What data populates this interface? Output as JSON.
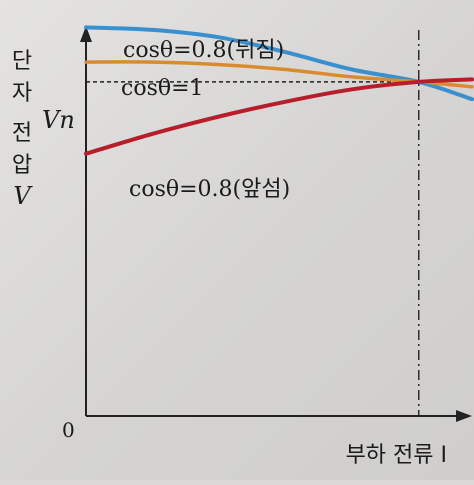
{
  "chart_data": {
    "type": "line",
    "title": "",
    "xlabel": "부하 전류 I",
    "ylabel": "단자 전압 V",
    "origin_label": "0",
    "rated_voltage_label": "Vn",
    "grid": false,
    "series": [
      {
        "name": "cosθ=0.8(뒤짐)",
        "color": "#3a8fcf",
        "relative_voltage": [
          1.22,
          1.21,
          1.18,
          1.12,
          1.05,
          1.0,
          0.93
        ]
      },
      {
        "name": "cosθ=1",
        "color": "#d98c2f",
        "relative_voltage": [
          1.08,
          1.08,
          1.07,
          1.05,
          1.02,
          1.0,
          0.98
        ]
      },
      {
        "name": "cosθ=0.8(앞섬)",
        "color": "#b81d2b",
        "relative_voltage": [
          0.71,
          0.79,
          0.86,
          0.92,
          0.97,
          1.0,
          1.01
        ]
      }
    ],
    "relative_current": [
      0.0,
      0.2,
      0.4,
      0.6,
      0.8,
      1.0,
      1.16
    ],
    "rated_point": {
      "relative_current": 1.0,
      "relative_voltage": 1.0
    },
    "xlim": [
      0,
      1.16
    ],
    "ylim": [
      -0.35,
      1.25
    ]
  }
}
